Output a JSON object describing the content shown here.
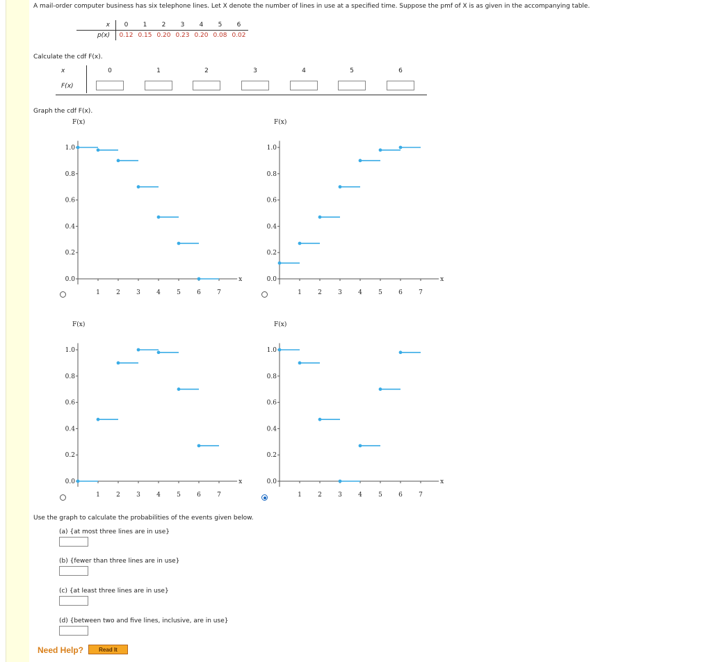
{
  "intro_text": "A mail-order computer business has six telephone lines. Let X denote the number of lines in use at a specified time. Suppose the pmf of X is as given in the accompanying table.",
  "pmf_table": {
    "x_header": "x",
    "p_header": "p(x)",
    "x_values": [
      "0",
      "1",
      "2",
      "3",
      "4",
      "5",
      "6"
    ],
    "p_values": [
      "0.12",
      "0.15",
      "0.20",
      "0.23",
      "0.20",
      "0.08",
      "0.02"
    ]
  },
  "cdf_prompt": "Calculate the cdf F(x).",
  "cdf_table": {
    "x_header": "x",
    "f_header": "F(x)",
    "x_values": [
      "0",
      "1",
      "2",
      "3",
      "4",
      "5",
      "6"
    ],
    "f_values": [
      "",
      "",
      "",
      "",
      "",
      "",
      ""
    ]
  },
  "graph_prompt": "Graph the cdf F(x).",
  "chart_data": [
    {
      "type": "step",
      "option": "A",
      "selected": false,
      "ylabel": "F(x)",
      "xlabel": "x",
      "xlim": [
        0,
        7
      ],
      "ylim": [
        0,
        1.0
      ],
      "xticks": [
        "1",
        "2",
        "3",
        "4",
        "5",
        "6",
        "7"
      ],
      "yticks": [
        "0.0",
        "0.2",
        "0.4",
        "0.6",
        "0.8",
        "1.0"
      ],
      "steps": [
        [
          0,
          1.0
        ],
        [
          1,
          0.98
        ],
        [
          2,
          0.9
        ],
        [
          3,
          0.7
        ],
        [
          4,
          0.47
        ],
        [
          5,
          0.27
        ],
        [
          6,
          0.0
        ]
      ],
      "color": "#3aace6"
    },
    {
      "type": "step",
      "option": "B",
      "selected": false,
      "ylabel": "F(x)",
      "xlabel": "x",
      "xlim": [
        0,
        7
      ],
      "ylim": [
        0,
        1.0
      ],
      "xticks": [
        "1",
        "2",
        "3",
        "4",
        "5",
        "6",
        "7"
      ],
      "yticks": [
        "0.0",
        "0.2",
        "0.4",
        "0.6",
        "0.8",
        "1.0"
      ],
      "steps": [
        [
          0,
          0.12
        ],
        [
          1,
          0.27
        ],
        [
          2,
          0.47
        ],
        [
          3,
          0.7
        ],
        [
          4,
          0.9
        ],
        [
          5,
          0.98
        ],
        [
          6,
          1.0
        ]
      ],
      "color": "#3aace6"
    },
    {
      "type": "step",
      "option": "C",
      "selected": false,
      "ylabel": "F(x)",
      "xlabel": "x",
      "xlim": [
        0,
        7
      ],
      "ylim": [
        0,
        1.0
      ],
      "xticks": [
        "1",
        "2",
        "3",
        "4",
        "5",
        "6",
        "7"
      ],
      "yticks": [
        "0.0",
        "0.2",
        "0.4",
        "0.6",
        "0.8",
        "1.0"
      ],
      "steps": [
        [
          0,
          0.0
        ],
        [
          1,
          0.47
        ],
        [
          2,
          0.9
        ],
        [
          3,
          1.0
        ],
        [
          4,
          0.98
        ],
        [
          5,
          0.7
        ],
        [
          6,
          0.27
        ]
      ],
      "color": "#3aace6"
    },
    {
      "type": "step",
      "option": "D",
      "selected": true,
      "ylabel": "F(x)",
      "xlabel": "x",
      "xlim": [
        0,
        7
      ],
      "ylim": [
        0,
        1.0
      ],
      "xticks": [
        "1",
        "2",
        "3",
        "4",
        "5",
        "6",
        "7"
      ],
      "yticks": [
        "0.0",
        "0.2",
        "0.4",
        "0.6",
        "0.8",
        "1.0"
      ],
      "steps": [
        [
          0,
          1.0
        ],
        [
          1,
          0.9
        ],
        [
          2,
          0.47
        ],
        [
          3,
          0.0
        ],
        [
          4,
          0.27
        ],
        [
          5,
          0.7
        ],
        [
          6,
          0.98
        ]
      ],
      "color": "#3aace6"
    }
  ],
  "use_graph_text": "Use the graph to calculate the probabilities of the events given below.",
  "questions": [
    {
      "label": "(a) {at most three lines are in use}",
      "value": ""
    },
    {
      "label": "(b) {fewer than three lines are in use}",
      "value": ""
    },
    {
      "label": "(c) {at least three lines are in use}",
      "value": ""
    },
    {
      "label": "(d) {between two and five lines, inclusive, are in use}",
      "value": ""
    }
  ],
  "need_help": "Need Help?",
  "read_it": "Read It"
}
